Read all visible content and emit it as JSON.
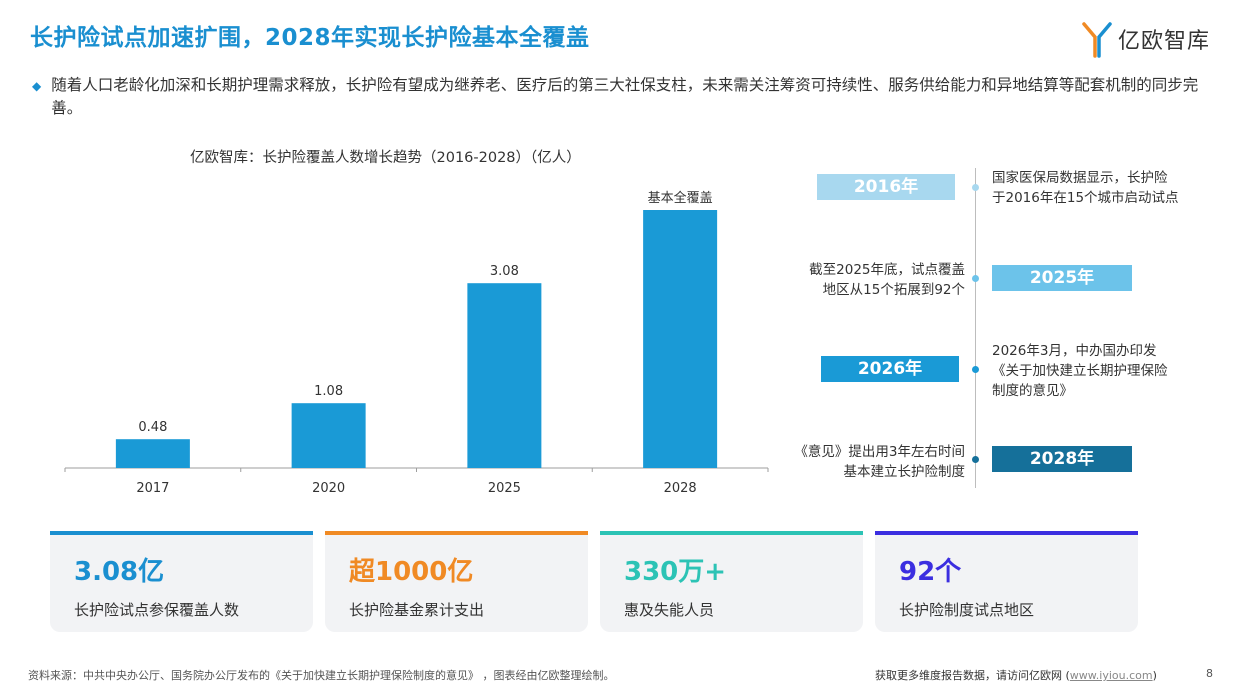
{
  "header": {
    "title": "长护险试点加速扩围，2028年实现长护险基本全覆盖",
    "logo_text": "亿欧智库"
  },
  "summary": "随着人口老龄化加深和长期护理需求释放，长护险有望成为继养老、医疗后的第三大社保支柱，未来需关注筹资可持续性、服务供给能力和异地结算等配套机制的同步完善。",
  "chart_data": {
    "type": "bar",
    "title": "亿欧智库：长护险覆盖人数增长趋势（2016-2028）（亿人）",
    "categories": [
      "2017",
      "2020",
      "2025",
      "2028"
    ],
    "values": [
      0.48,
      1.08,
      3.08,
      4.3
    ],
    "data_labels": [
      "0.48",
      "1.08",
      "3.08",
      "基本全覆盖"
    ],
    "ylim": [
      0,
      4.5
    ],
    "color": "#1a9ad6",
    "grid": false
  },
  "timeline": [
    {
      "year": "2016年",
      "text": [
        "国家医保局数据显示，长护险",
        "于2016年在15个城市启动试点"
      ],
      "color": "#a8d8ef"
    },
    {
      "year": "2025年",
      "text": [
        "截至2025年底，试点覆盖",
        "地区从15个拓展到92个"
      ],
      "color": "#6cc3ea"
    },
    {
      "year": "2026年",
      "text": [
        "2026年3月，中办国办印发",
        "《关于加快建立长期护理保险",
        "制度的意见》"
      ],
      "color": "#1a9ad6"
    },
    {
      "year": "2028年",
      "text": [
        "《意见》提出用3年左右时间",
        "基本建立长护险制度"
      ],
      "color": "#15709a"
    }
  ],
  "stats": [
    {
      "value": "3.08亿",
      "label": "长护险试点参保覆盖人数",
      "color": "#1a8fd0"
    },
    {
      "value": "超1000亿",
      "label": "长护险基金累计支出",
      "color": "#f08a24"
    },
    {
      "value": "330万+",
      "label": "惠及失能人员",
      "color": "#2cc3b5"
    },
    {
      "value": "92个",
      "label": "长护险制度试点地区",
      "color": "#3b2ee0"
    }
  ],
  "footer": {
    "source": "资料来源：中共中央办公厅、国务院办公厅发布的《关于加快建立长期护理保险制度的意见》  ，图表经由亿欧整理绘制。",
    "more_text": "获取更多维度报告数据，请访问亿欧网 (",
    "link": "www.iyiou.com",
    "close": ")",
    "page": "8"
  }
}
